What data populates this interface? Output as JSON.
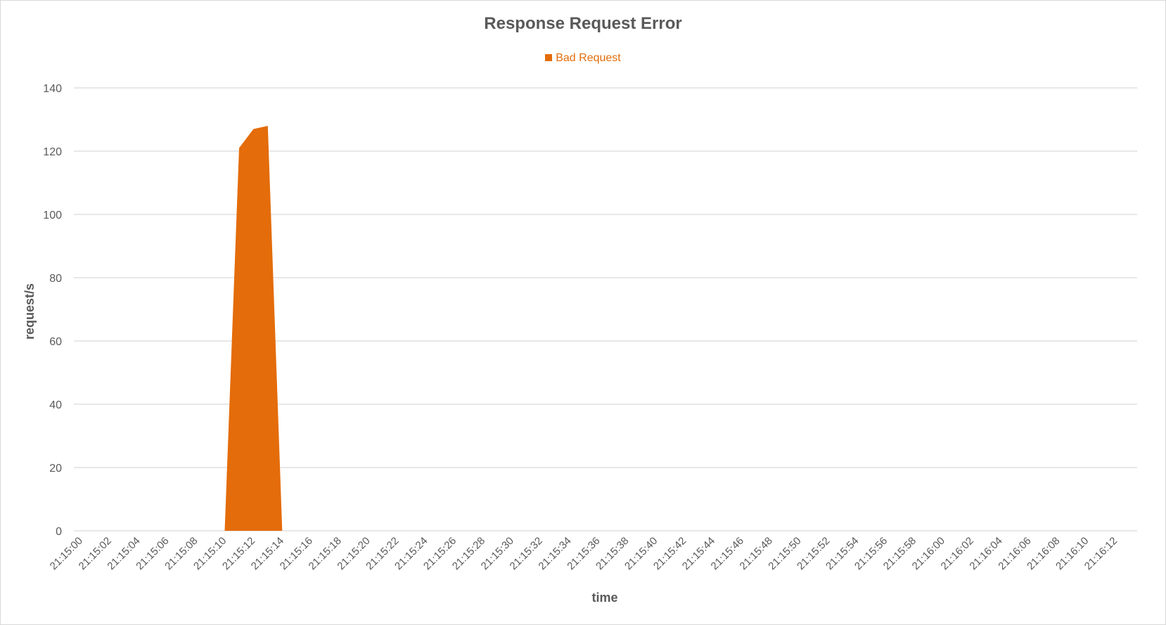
{
  "chart_data": {
    "type": "area",
    "title": "Response Request Error",
    "xlabel": "time",
    "ylabel": "request/s",
    "ylim": [
      0,
      140
    ],
    "yticks": [
      0,
      20,
      40,
      60,
      80,
      100,
      120,
      140
    ],
    "grid": true,
    "legend_position": "top",
    "x_tick_labels": [
      "21:15:00",
      "21:15:02",
      "21:15:04",
      "21:15:06",
      "21:15:08",
      "21:15:10",
      "21:15:12",
      "21:15:14",
      "21:15:16",
      "21:15:18",
      "21:15:20",
      "21:15:22",
      "21:15:24",
      "21:15:26",
      "21:15:28",
      "21:15:30",
      "21:15:32",
      "21:15:34",
      "21:15:36",
      "21:15:38",
      "21:15:40",
      "21:15:42",
      "21:15:44",
      "21:15:46",
      "21:15:48",
      "21:15:50",
      "21:15:52",
      "21:15:54",
      "21:15:56",
      "21:15:58",
      "21:16:00",
      "21:16:02",
      "21:16:04",
      "21:16:06",
      "21:16:08",
      "21:16:10",
      "21:16:12"
    ],
    "series": [
      {
        "name": "Bad Request",
        "color": "#e46c0a",
        "x": [
          "21:15:00",
          "21:15:01",
          "21:15:02",
          "21:15:03",
          "21:15:04",
          "21:15:05",
          "21:15:06",
          "21:15:07",
          "21:15:08",
          "21:15:09",
          "21:15:10",
          "21:15:11",
          "21:15:12",
          "21:15:13",
          "21:15:14",
          "21:15:15",
          "21:15:16",
          "21:15:17",
          "21:15:18",
          "21:15:19",
          "21:15:20",
          "21:15:21",
          "21:15:22",
          "21:15:23",
          "21:15:24",
          "21:15:25",
          "21:15:26",
          "21:15:27",
          "21:15:28",
          "21:15:29",
          "21:15:30",
          "21:15:31",
          "21:15:32",
          "21:15:33",
          "21:15:34",
          "21:15:35",
          "21:15:36",
          "21:15:37",
          "21:15:38",
          "21:15:39",
          "21:15:40",
          "21:15:41",
          "21:15:42",
          "21:15:43",
          "21:15:44",
          "21:15:45",
          "21:15:46",
          "21:15:47",
          "21:15:48",
          "21:15:49",
          "21:15:50",
          "21:15:51",
          "21:15:52",
          "21:15:53",
          "21:15:54",
          "21:15:55",
          "21:15:56",
          "21:15:57",
          "21:15:58",
          "21:15:59",
          "21:16:00",
          "21:16:01",
          "21:16:02",
          "21:16:03",
          "21:16:04",
          "21:16:05",
          "21:16:06",
          "21:16:07",
          "21:16:08",
          "21:16:09",
          "21:16:10",
          "21:16:11",
          "21:16:12",
          "21:16:13"
        ],
        "values": [
          0,
          0,
          0,
          0,
          0,
          0,
          0,
          0,
          0,
          0,
          0,
          121,
          127,
          128,
          0,
          0,
          0,
          0,
          0,
          0,
          0,
          0,
          0,
          0,
          0,
          0,
          0,
          0,
          0,
          0,
          0,
          0,
          0,
          0,
          0,
          0,
          0,
          0,
          0,
          0,
          0,
          0,
          0,
          0,
          0,
          0,
          0,
          0,
          0,
          0,
          0,
          0,
          0,
          0,
          0,
          0,
          0,
          0,
          0,
          0,
          0,
          0,
          0,
          0,
          0,
          0,
          0,
          0,
          0,
          0,
          0,
          0,
          0,
          0
        ]
      }
    ]
  }
}
